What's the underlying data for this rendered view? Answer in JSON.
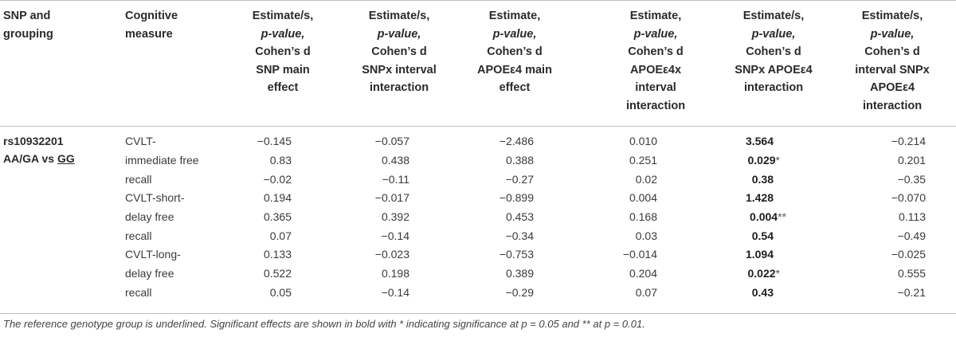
{
  "headers": {
    "col1": [
      "SNP and",
      "grouping"
    ],
    "col2": [
      "Cognitive",
      "measure"
    ],
    "col3": [
      "Estimate/s,",
      "p-value,",
      "Cohen’s d",
      "SNP main",
      "effect"
    ],
    "col4": [
      "Estimate/s,",
      "p-value,",
      "Cohen’s d",
      "SNPx interval",
      "interaction"
    ],
    "col5": [
      "Estimate,",
      "p-value,",
      "Cohen’s d",
      "APOEε4 main",
      "effect"
    ],
    "col6": [
      "Estimate,",
      "p-value,",
      "Cohen’s d",
      "APOEε4x",
      "interval",
      "interaction"
    ],
    "col7": [
      "Estimate/s,",
      "p-value,",
      "Cohen’s d",
      "SNPx APOEε4",
      "interaction"
    ],
    "col8": [
      "Estimate/s,",
      "p-value,",
      "Cohen’s d",
      "interval SNPx",
      "APOEε4",
      "interaction"
    ]
  },
  "group": {
    "snp": "rs10932201",
    "comparison_prefix": "AA/GA vs ",
    "reference": "GG"
  },
  "rows": [
    {
      "measure": [
        "CVLT-",
        "immediate free",
        "recall"
      ],
      "snp_main": [
        "−0.145",
        "0.83",
        "−0.02"
      ],
      "snp_interval": [
        "−0.057",
        "0.438",
        "−0.11"
      ],
      "apoe_main": [
        "−2.486",
        "0.388",
        "−0.27"
      ],
      "apoe_interval": [
        "0.010",
        "0.251",
        "0.02"
      ],
      "snp_apoe": [
        "3.564",
        "0.029",
        "0.38"
      ],
      "snp_apoe_star": "*",
      "interval_snp_apoe": [
        "−0.214",
        "0.201",
        "−0.35"
      ]
    },
    {
      "measure": [
        "CVLT-short-",
        "delay free",
        "recall"
      ],
      "snp_main": [
        "0.194",
        "0.365",
        "0.07"
      ],
      "snp_interval": [
        "−0.017",
        "0.392",
        "−0.14"
      ],
      "apoe_main": [
        "−0.899",
        "0.453",
        "−0.34"
      ],
      "apoe_interval": [
        "0.004",
        "0.168",
        "0.03"
      ],
      "snp_apoe": [
        "1.428",
        "0.004",
        "0.54"
      ],
      "snp_apoe_star": "**",
      "interval_snp_apoe": [
        "−0.070",
        "0.113",
        "−0.49"
      ]
    },
    {
      "measure": [
        "CVLT-long-",
        "delay free",
        "recall"
      ],
      "snp_main": [
        "0.133",
        "0.522",
        "0.05"
      ],
      "snp_interval": [
        "−0.023",
        "0.198",
        "−0.14"
      ],
      "apoe_main": [
        "−0.753",
        "0.389",
        "−0.29"
      ],
      "apoe_interval": [
        "−0.014",
        "0.204",
        "0.07"
      ],
      "snp_apoe": [
        "1.094",
        "0.022",
        "0.43"
      ],
      "snp_apoe_star": "*",
      "interval_snp_apoe": [
        "−0.025",
        "0.555",
        "−0.21"
      ]
    }
  ],
  "footnote": "The reference genotype group is underlined. Significant effects are shown in bold with * indicating significance at p = 0.05 and ** at p = 0.01."
}
